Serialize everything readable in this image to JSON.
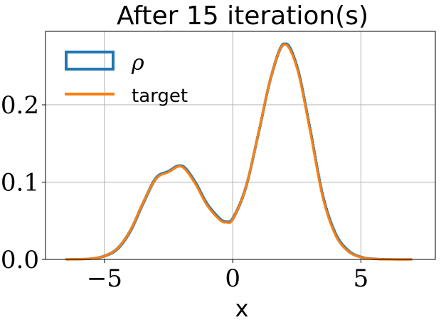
{
  "chart_data": {
    "type": "line",
    "title": "After 15 iteration(s)",
    "xlabel": "x",
    "ylabel": "",
    "xlim": [
      -7.3,
      7.9
    ],
    "ylim": [
      0.0,
      0.295
    ],
    "xticks": [
      -5,
      0,
      5
    ],
    "xtick_labels": [
      "−5",
      "0",
      "5"
    ],
    "yticks": [
      0.0,
      0.1,
      0.2
    ],
    "ytick_labels": [
      "0.0",
      "0.1",
      "0.2"
    ],
    "grid": true,
    "legend_position": "top-left",
    "series": [
      {
        "name": "ρ",
        "kind": "step-histogram",
        "color": "#1f77b4",
        "x": [
          -6.5,
          -6.0,
          -5.5,
          -5.0,
          -4.5,
          -4.0,
          -3.5,
          -3.0,
          -2.5,
          -2.0,
          -1.5,
          -1.0,
          -0.5,
          -0.25,
          0.0,
          0.5,
          1.0,
          1.5,
          2.0,
          2.5,
          3.0,
          3.5,
          4.0,
          4.5,
          5.0,
          5.5,
          6.0,
          6.5,
          7.0
        ],
        "values": [
          0.0,
          0.0003,
          0.0011,
          0.0045,
          0.014,
          0.037,
          0.073,
          0.105,
          0.114,
          0.121,
          0.101,
          0.071,
          0.052,
          0.049,
          0.053,
          0.093,
          0.164,
          0.238,
          0.279,
          0.249,
          0.17,
          0.083,
          0.033,
          0.011,
          0.003,
          0.0008,
          0.0002,
          0.0,
          0.0
        ]
      },
      {
        "name": "target",
        "kind": "line",
        "color": "#ff7f0e",
        "x": [
          -6.5,
          -6.0,
          -5.5,
          -5.0,
          -4.5,
          -4.0,
          -3.5,
          -3.0,
          -2.5,
          -2.0,
          -1.5,
          -1.0,
          -0.5,
          -0.25,
          0.0,
          0.5,
          1.0,
          1.5,
          2.0,
          2.5,
          3.0,
          3.5,
          4.0,
          4.5,
          5.0,
          5.5,
          6.0,
          6.5,
          7.0
        ],
        "values": [
          0.0,
          0.0003,
          0.0011,
          0.0044,
          0.014,
          0.037,
          0.073,
          0.104,
          0.113,
          0.12,
          0.1,
          0.07,
          0.051,
          0.048,
          0.052,
          0.092,
          0.163,
          0.237,
          0.278,
          0.248,
          0.169,
          0.082,
          0.032,
          0.0105,
          0.0029,
          0.0007,
          0.0001,
          0.0,
          0.0
        ]
      }
    ]
  }
}
